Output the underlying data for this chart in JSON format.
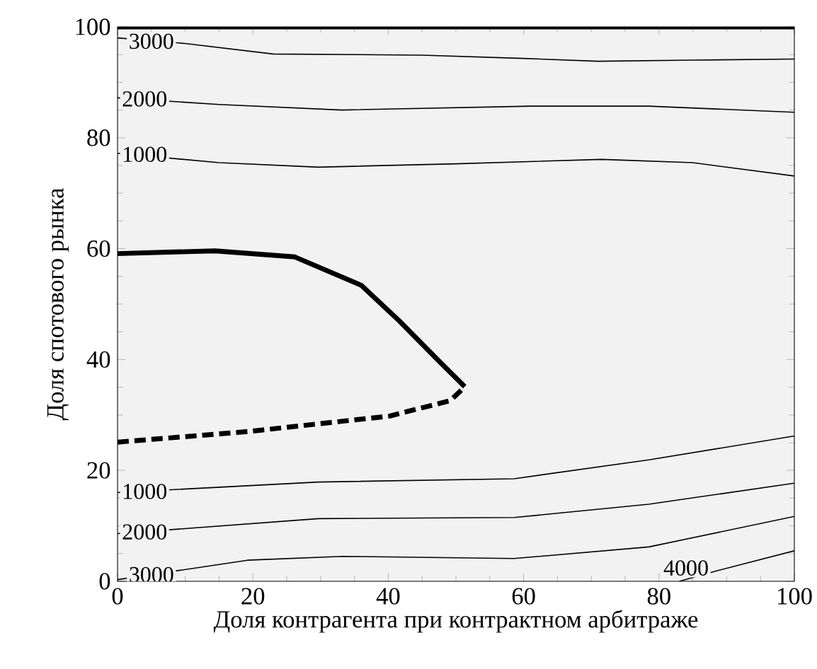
{
  "chart_data": {
    "type": "line",
    "xlabel": "Доля контрагента при контрактном арбитраже",
    "ylabel": "Доля спотового рынка",
    "xlim": [
      0,
      100
    ],
    "ylim": [
      0,
      100
    ],
    "xticks": [
      0,
      20,
      40,
      60,
      80,
      100
    ],
    "yticks": [
      0,
      20,
      40,
      60,
      80,
      100
    ],
    "marker": "none",
    "series": [
      {
        "color": "#000000",
        "x": [
          0,
          10,
          23,
          45,
          60,
          71,
          85,
          100
        ],
        "values": [
          98,
          97,
          95.1,
          94.9,
          94.3,
          93.8,
          94,
          94.2
        ]
      },
      {
        "color": "#000000",
        "x": [
          0,
          15,
          33.2,
          61,
          78.5,
          100
        ],
        "values": [
          87.2,
          86,
          85,
          85.7,
          85.7,
          84.6
        ]
      },
      {
        "color": "#000000",
        "x": [
          0,
          15,
          29.7,
          50,
          71.5,
          85,
          100
        ],
        "values": [
          77.2,
          75.5,
          74.7,
          75.3,
          76.1,
          75.5,
          73.1
        ]
      },
      {
        "color": "#000000",
        "x": [
          0,
          100
        ],
        "values": [
          100,
          100
        ],
        "line_style": "solid"
      },
      {
        "color": "#000000",
        "x": [
          0,
          14.4,
          26.2,
          36,
          41.6,
          47.1,
          51.3
        ],
        "values": [
          59.1,
          59.6,
          58.5,
          53.4,
          47,
          40.2,
          35.1
        ],
        "line_style": "solid"
      },
      {
        "color": "#000000",
        "x": [
          0,
          19.2,
          40.2,
          49.2,
          51.3
        ],
        "values": [
          25.1,
          27,
          29.8,
          32.6,
          35.1
        ],
        "line_style": "dashed"
      },
      {
        "color": "#000000",
        "x": [
          0,
          29.7,
          58.6,
          78.5,
          100
        ],
        "values": [
          16,
          17.9,
          18.5,
          21.9,
          26.2
        ]
      },
      {
        "color": "#000000",
        "x": [
          0,
          29.7,
          58.6,
          78.5,
          100
        ],
        "values": [
          8.6,
          11.3,
          11.5,
          13.9,
          17.7
        ]
      },
      {
        "color": "#000000",
        "x": [
          0,
          19.2,
          33.2,
          58.6,
          78.5,
          100
        ],
        "values": [
          0.3,
          3.8,
          4.5,
          4.1,
          6.2,
          11.7
        ]
      },
      {
        "color": "#000000",
        "x": [
          83,
          88.9,
          100
        ],
        "values": [
          0,
          2,
          5.5
        ]
      }
    ],
    "annotations": [
      {
        "text": "3000",
        "x": 5,
        "y": 97.4
      },
      {
        "text": "2000",
        "x": 4,
        "y": 87
      },
      {
        "text": "1000",
        "x": 4,
        "y": 77
      },
      {
        "text": "1000",
        "x": 4,
        "y": 16.2
      },
      {
        "text": "2000",
        "x": 4,
        "y": 8.9
      },
      {
        "text": "3000",
        "x": 5,
        "y": 1.2
      },
      {
        "text": "4000",
        "x": 84,
        "y": 2.4
      }
    ]
  }
}
